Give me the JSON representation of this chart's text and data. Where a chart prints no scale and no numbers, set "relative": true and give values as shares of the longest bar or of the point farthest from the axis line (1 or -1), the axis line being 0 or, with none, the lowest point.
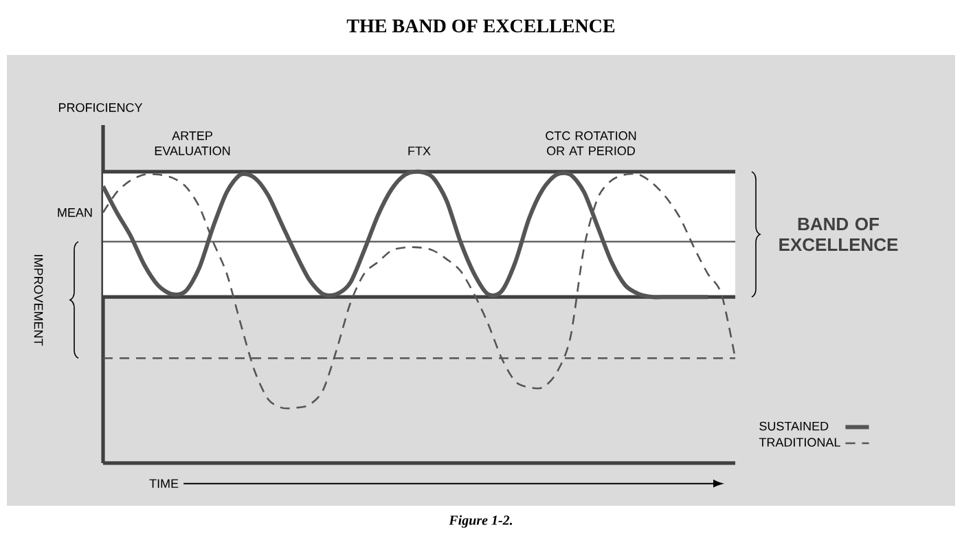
{
  "chart_data": {
    "type": "line",
    "title": "THE BAND OF EXCELLENCE",
    "xlabel": "TIME",
    "ylabel": "PROFICIENCY",
    "relative": true,
    "legend": "bottom right",
    "categories": [
      null,
      null,
      null,
      null,
      null,
      null,
      null,
      null,
      null,
      null,
      null,
      null,
      null,
      null,
      null,
      null,
      null,
      null,
      null,
      null,
      null,
      null,
      null,
      null,
      null,
      null,
      null,
      null,
      null,
      null,
      null,
      null,
      null,
      null,
      null,
      null,
      null,
      null,
      null,
      null,
      null,
      null,
      null,
      null,
      null,
      null,
      null
    ],
    "series": [
      {
        "name": "SUSTAINED",
        "color": "#555555",
        "line_style": "solid",
        "values": [
          0.95,
          0.86,
          0.78,
          0.68,
          0.61,
          0.58,
          0.59,
          0.67,
          0.81,
          0.93,
          0.99,
          0.98,
          0.92,
          0.82,
          0.72,
          0.63,
          0.58,
          0.58,
          0.62,
          0.73,
          0.85,
          0.94,
          0.99,
          1.0,
          0.98,
          0.9,
          0.76,
          0.65,
          0.58,
          0.59,
          0.69,
          0.84,
          0.94,
          0.99,
          0.99,
          0.93,
          0.81,
          0.69,
          0.61,
          0.58,
          0.57,
          0.57,
          0.57,
          0.57,
          0.57,
          null,
          null
        ]
      },
      {
        "name": "TRADITIONAL",
        "color": "#555555",
        "line_style": "dashed",
        "values": [
          0.86,
          0.93,
          0.97,
          0.99,
          0.99,
          0.98,
          0.95,
          0.88,
          0.76,
          0.65,
          0.48,
          0.32,
          0.22,
          0.19,
          0.19,
          0.2,
          0.25,
          0.39,
          0.55,
          0.65,
          0.69,
          0.73,
          0.74,
          0.74,
          0.73,
          0.7,
          0.66,
          0.58,
          0.48,
          0.36,
          0.28,
          0.26,
          0.26,
          0.31,
          0.43,
          0.74,
          0.91,
          0.97,
          0.99,
          0.99,
          0.96,
          0.91,
          0.84,
          0.74,
          0.65,
          0.58,
          0.36
        ]
      }
    ],
    "ref_lines": [
      {
        "axis": "y",
        "value": 0.76,
        "label": "MEAN",
        "color": "#555555",
        "line_style": "solid"
      },
      {
        "axis": "y",
        "value": 1.0,
        "color": "#404040",
        "line_style": "solid"
      },
      {
        "axis": "y",
        "value": 0.57,
        "color": "#404040",
        "line_style": "solid"
      },
      {
        "axis": "y",
        "value": 0.36,
        "color": "#555555",
        "line_style": "dashed"
      }
    ],
    "bands": [
      {
        "axis": "y",
        "from": 0.57,
        "to": 1.0,
        "label": "BAND OF EXCELLENCE",
        "color": "#ffffff"
      }
    ],
    "annotations": [
      "ARTEP EVALUATION",
      "FTX",
      "CTC ROTATION OR AT PERIOD",
      "IMPROVEMENT",
      "Figure 1-2."
    ]
  }
}
